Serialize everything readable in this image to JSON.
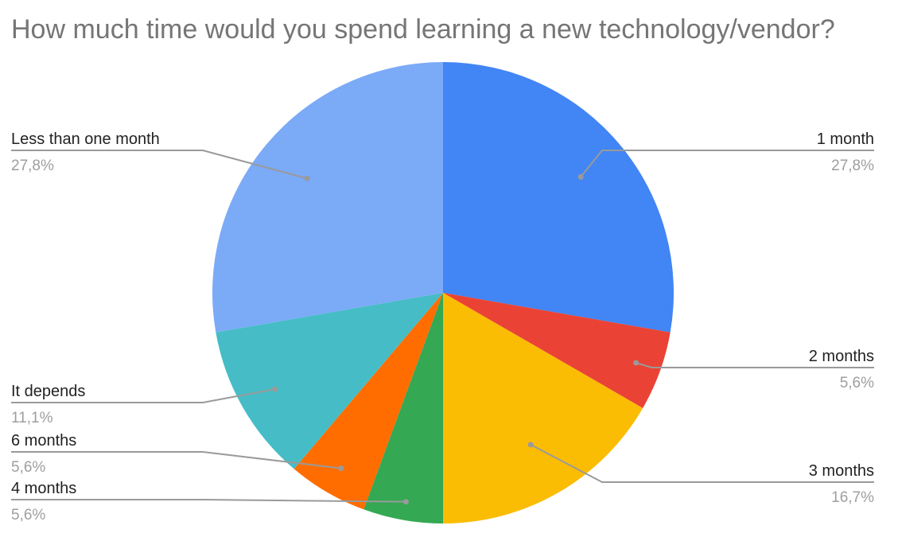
{
  "chart_data": {
    "type": "pie",
    "title": "How much time would you spend learning a new technology/vendor?",
    "slices": [
      {
        "label": "1 month",
        "value": 27.8,
        "percent_label": "27,8%",
        "color": "#4285F4"
      },
      {
        "label": "2 months",
        "value": 5.6,
        "percent_label": "5,6%",
        "color": "#EA4335"
      },
      {
        "label": "3 months",
        "value": 16.7,
        "percent_label": "16,7%",
        "color": "#FBBC04"
      },
      {
        "label": "4 months",
        "value": 5.6,
        "percent_label": "5,6%",
        "color": "#34A853"
      },
      {
        "label": "6 months",
        "value": 5.6,
        "percent_label": "5,6%",
        "color": "#FF6D01"
      },
      {
        "label": "It depends",
        "value": 11.1,
        "percent_label": "11,1%",
        "color": "#46BDC6"
      },
      {
        "label": "Less than one month",
        "value": 27.8,
        "percent_label": "27,8%",
        "color": "#7BAAF7"
      }
    ],
    "start_angle": "12 o'clock",
    "direction": "clockwise",
    "legend": "none (labels with leader lines)"
  }
}
